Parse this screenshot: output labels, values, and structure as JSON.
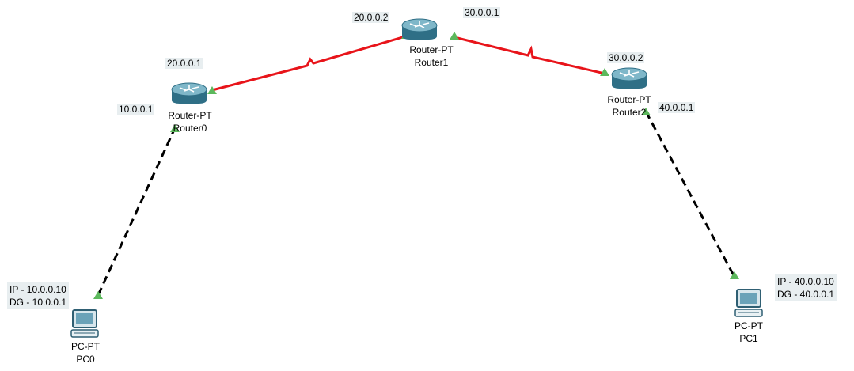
{
  "colors": {
    "serial_link": "#e8141a",
    "ethernet_link": "#000000",
    "port_up": "#5cb85c",
    "label_bg": "#e8eef0"
  },
  "routers": [
    {
      "type": "Router-PT",
      "name": "Router0",
      "icon": "router-icon"
    },
    {
      "type": "Router-PT",
      "name": "Router1",
      "icon": "router-icon"
    },
    {
      "type": "Router-PT",
      "name": "Router2",
      "icon": "router-icon"
    }
  ],
  "pcs": [
    {
      "type": "PC-PT",
      "name": "PC0",
      "icon": "pc-icon",
      "ip": "IP - 10.0.0.10",
      "dg": "DG - 10.0.0.1"
    },
    {
      "type": "PC-PT",
      "name": "PC1",
      "icon": "pc-icon",
      "ip": "IP - 40.0.0.10",
      "dg": "DG - 40.0.0.1"
    }
  ],
  "interface_labels": {
    "r0_lan": "10.0.0.1",
    "r0_wan": "20.0.0.1",
    "r1_left": "20.0.0.2",
    "r1_right": "30.0.0.1",
    "r2_left": "30.0.0.2",
    "r2_lan": "40.0.0.1"
  },
  "links": [
    {
      "from": "Router0",
      "to": "Router1",
      "kind": "serial"
    },
    {
      "from": "Router1",
      "to": "Router2",
      "kind": "serial"
    },
    {
      "from": "PC0",
      "to": "Router0",
      "kind": "ethernet"
    },
    {
      "from": "Router2",
      "to": "PC1",
      "kind": "ethernet"
    }
  ]
}
